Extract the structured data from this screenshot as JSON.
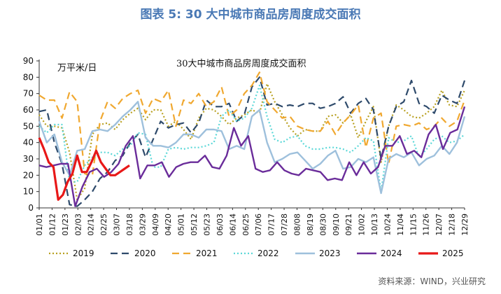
{
  "figure_title": "图表 5:  30 大中城市商品房周度成交面积",
  "source": "资料来源：WIND，兴业研究",
  "chart_data": {
    "type": "line",
    "title": "30大中城市商品房周度成交面积",
    "ylabel": "万平米/日",
    "ylim": [
      0,
      90
    ],
    "yticks": [
      0,
      10,
      20,
      30,
      40,
      50,
      60,
      70,
      80,
      90
    ],
    "x_tick_labels": [
      "01/01",
      "01/12",
      "01/23",
      "02/03",
      "02/14",
      "02/25",
      "03/07",
      "03/18",
      "03/29",
      "04/09",
      "04/20",
      "05/01",
      "05/12",
      "05/23",
      "06/03",
      "06/14",
      "06/25",
      "07/06",
      "07/17",
      "07/28",
      "08/08",
      "08/19",
      "08/30",
      "09/10",
      "09/21",
      "10/02",
      "10/13",
      "10/24",
      "11/04",
      "11/15",
      "11/26",
      "12/07",
      "12/18",
      "12/29"
    ],
    "grid": false,
    "legend_position": "bottom",
    "series": [
      {
        "name": "2019",
        "color": "#b8a020",
        "dash": "2,3",
        "width": 2.2,
        "values": [
          57,
          50,
          50,
          49,
          34,
          5,
          12,
          45,
          51,
          52,
          48,
          54,
          58,
          61,
          54,
          60,
          60,
          50,
          53,
          48,
          42,
          55,
          61,
          60,
          56,
          51,
          55,
          57,
          60,
          58,
          76,
          65,
          57,
          49,
          44,
          48,
          47,
          47,
          56,
          57,
          52,
          57,
          43,
          53,
          62,
          28,
          50,
          63,
          60,
          56,
          55,
          58,
          62,
          72,
          63,
          62,
          72
        ]
      },
      {
        "name": "2020",
        "color": "#2e4a6b",
        "dash": "10,6",
        "width": 2.2,
        "values": [
          59,
          60,
          40,
          27,
          2,
          1,
          5,
          10,
          18,
          22,
          29,
          32,
          40,
          45,
          31,
          42,
          53,
          49,
          51,
          52,
          46,
          52,
          66,
          62,
          62,
          64,
          53,
          57,
          74,
          80,
          63,
          64,
          62,
          63,
          62,
          64,
          64,
          61,
          62,
          64,
          68,
          58,
          64,
          67,
          60,
          30,
          50,
          62,
          65,
          78,
          64,
          62,
          58,
          69,
          66,
          64,
          78
        ]
      },
      {
        "name": "2021",
        "color": "#f0a830",
        "dash": "10,6",
        "width": 2.2,
        "values": [
          69,
          66,
          66,
          55,
          71,
          65,
          21,
          20,
          53,
          65,
          61,
          67,
          70,
          72,
          58,
          67,
          65,
          72,
          50,
          66,
          64,
          70,
          62,
          65,
          74,
          56,
          60,
          70,
          75,
          83,
          65,
          60,
          55,
          56,
          50,
          48,
          47,
          47,
          53,
          45,
          52,
          57,
          63,
          37,
          55,
          58,
          27,
          50,
          51,
          50,
          52,
          48,
          50,
          55,
          50,
          53,
          66
        ]
      },
      {
        "name": "2022",
        "color": "#5cd8d8",
        "dash": "2,3",
        "width": 2.2,
        "values": [
          50,
          46,
          51,
          51,
          16,
          16,
          26,
          31,
          34,
          34,
          32,
          36,
          38,
          46,
          45,
          25,
          25,
          36,
          37,
          36,
          37,
          37,
          38,
          40,
          56,
          60,
          53,
          55,
          61,
          75,
          56,
          42,
          40,
          43,
          44,
          38,
          36,
          36,
          37,
          37,
          36,
          34,
          38,
          43,
          41,
          10,
          43,
          40,
          41,
          44,
          31,
          36,
          42,
          44,
          40,
          41,
          45
        ]
      },
      {
        "name": "2023",
        "color": "#9ec0dc",
        "dash": "",
        "width": 2.4,
        "values": [
          53,
          40,
          45,
          28,
          20,
          35,
          36,
          47,
          48,
          47,
          51,
          56,
          60,
          65,
          43,
          38,
          38,
          37,
          40,
          45,
          45,
          43,
          48,
          48,
          47,
          36,
          38,
          36,
          56,
          60,
          40,
          28,
          30,
          33,
          34,
          29,
          24,
          27,
          32,
          35,
          24,
          25,
          30,
          28,
          31,
          9,
          30,
          33,
          31,
          34,
          26,
          30,
          32,
          38,
          33,
          40,
          56
        ]
      },
      {
        "name": "2024",
        "color": "#6a2c9a",
        "dash": "",
        "width": 2.4,
        "values": [
          26,
          25,
          26,
          27,
          27,
          1,
          13,
          22,
          24,
          19,
          22,
          27,
          38,
          44,
          18,
          26,
          26,
          28,
          19,
          25,
          27,
          28,
          28,
          32,
          25,
          24,
          32,
          49,
          38,
          44,
          24,
          22,
          23,
          28,
          23,
          21,
          20,
          24,
          23,
          22,
          17,
          18,
          17,
          28,
          20,
          28,
          21,
          25,
          38,
          38,
          44,
          33,
          35,
          31,
          45,
          51,
          36,
          46,
          48,
          62
        ]
      },
      {
        "name": "2025",
        "color": "#e81818",
        "dash": "",
        "width": 3.2,
        "values": [
          43,
          36,
          28,
          25,
          5,
          8,
          16,
          21,
          32,
          22,
          22,
          28,
          35,
          28,
          24,
          20,
          20,
          22,
          24,
          26
        ]
      }
    ]
  }
}
